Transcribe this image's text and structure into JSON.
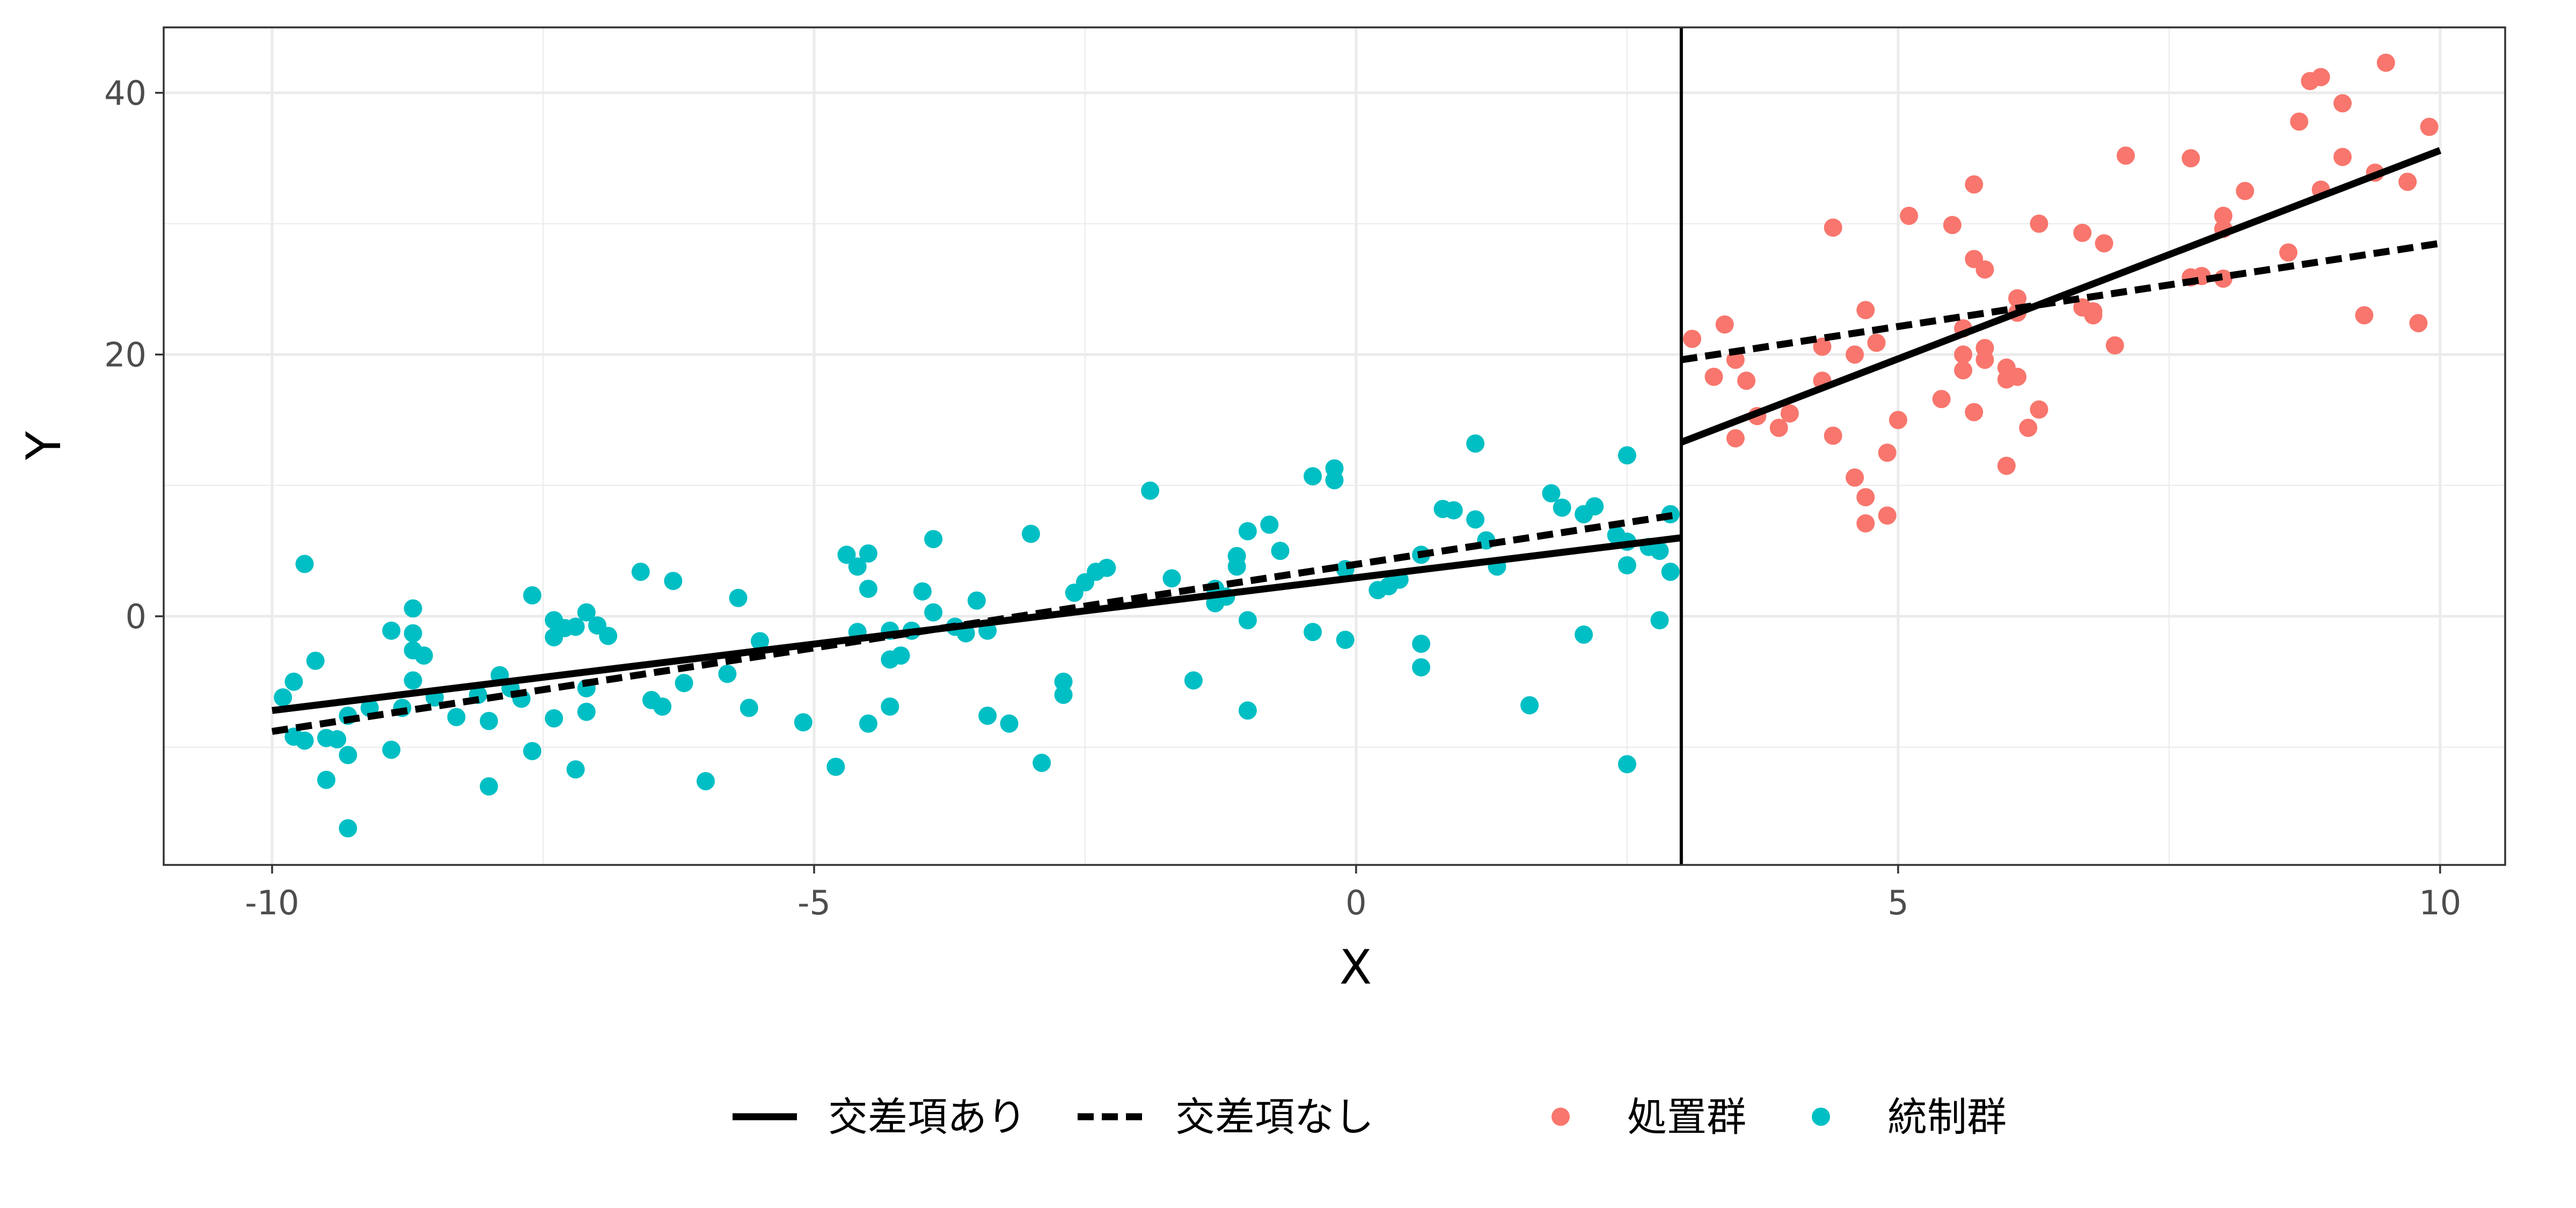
{
  "chart_data": {
    "type": "scatter",
    "xlabel": "X",
    "ylabel": "Y",
    "xlim": [
      -11,
      10.6
    ],
    "ylim": [
      -19,
      45
    ],
    "x_ticks": [
      -10,
      -5,
      0,
      5,
      10
    ],
    "y_ticks": [
      0,
      20,
      40
    ],
    "x_tick_labels": [
      "-10",
      "-5",
      "0",
      "5",
      "10"
    ],
    "y_tick_labels": [
      "0",
      "20",
      "40"
    ],
    "grid": true,
    "cutoff_x": 3,
    "legend_position": "bottom",
    "colors": {
      "treated": "#F8766D",
      "control": "#00BFC4",
      "line": "#000000"
    },
    "series": [
      {
        "name": "処置群",
        "kind": "points",
        "color": "#F8766D",
        "points": [
          [
            3.1,
            21.2
          ],
          [
            3.3,
            18.3
          ],
          [
            3.4,
            22.3
          ],
          [
            3.5,
            19.6
          ],
          [
            3.6,
            18.0
          ],
          [
            3.5,
            13.6
          ],
          [
            3.7,
            15.3
          ],
          [
            3.9,
            14.4
          ],
          [
            4.0,
            15.5
          ],
          [
            4.3,
            18.0
          ],
          [
            4.3,
            20.6
          ],
          [
            4.4,
            13.8
          ],
          [
            4.4,
            29.7
          ],
          [
            4.6,
            20.0
          ],
          [
            4.6,
            10.6
          ],
          [
            4.7,
            23.4
          ],
          [
            4.7,
            7.1
          ],
          [
            4.7,
            9.1
          ],
          [
            4.8,
            20.9
          ],
          [
            4.9,
            12.5
          ],
          [
            4.9,
            7.7
          ],
          [
            5.0,
            15.0
          ],
          [
            5.1,
            30.6
          ],
          [
            5.4,
            16.6
          ],
          [
            5.5,
            29.9
          ],
          [
            5.6,
            20.0
          ],
          [
            5.6,
            18.8
          ],
          [
            5.6,
            22.0
          ],
          [
            5.7,
            27.3
          ],
          [
            5.7,
            33.0
          ],
          [
            5.8,
            26.5
          ],
          [
            5.8,
            19.6
          ],
          [
            5.8,
            20.5
          ],
          [
            5.7,
            15.6
          ],
          [
            6.0,
            19.0
          ],
          [
            6.0,
            18.1
          ],
          [
            6.0,
            11.5
          ],
          [
            6.1,
            18.3
          ],
          [
            6.1,
            24.3
          ],
          [
            6.1,
            23.2
          ],
          [
            6.2,
            14.4
          ],
          [
            6.3,
            30.0
          ],
          [
            6.3,
            15.8
          ],
          [
            6.7,
            29.3
          ],
          [
            6.7,
            23.6
          ],
          [
            6.8,
            23.3
          ],
          [
            6.8,
            23.0
          ],
          [
            6.9,
            28.5
          ],
          [
            7.0,
            20.7
          ],
          [
            7.1,
            35.2
          ],
          [
            7.7,
            25.9
          ],
          [
            7.7,
            35.0
          ],
          [
            7.8,
            26.0
          ],
          [
            8.0,
            25.8
          ],
          [
            8.0,
            30.6
          ],
          [
            8.0,
            29.6
          ],
          [
            8.2,
            32.5
          ],
          [
            8.6,
            27.8
          ],
          [
            8.7,
            37.8
          ],
          [
            8.8,
            40.9
          ],
          [
            8.9,
            41.2
          ],
          [
            8.9,
            32.6
          ],
          [
            9.1,
            39.2
          ],
          [
            9.1,
            35.1
          ],
          [
            9.3,
            23.0
          ],
          [
            9.4,
            33.9
          ],
          [
            9.5,
            42.3
          ],
          [
            9.7,
            33.2
          ],
          [
            9.8,
            22.4
          ],
          [
            9.9,
            37.4
          ]
        ]
      },
      {
        "name": "統制群",
        "kind": "points",
        "color": "#00BFC4",
        "points": [
          [
            -9.9,
            -6.2
          ],
          [
            -9.8,
            -5.0
          ],
          [
            -9.8,
            -9.2
          ],
          [
            -9.7,
            -9.5
          ],
          [
            -9.7,
            4.0
          ],
          [
            -9.6,
            -3.4
          ],
          [
            -9.5,
            -12.5
          ],
          [
            -9.5,
            -9.3
          ],
          [
            -9.4,
            -9.4
          ],
          [
            -9.3,
            -7.6
          ],
          [
            -9.3,
            -16.2
          ],
          [
            -9.3,
            -10.6
          ],
          [
            -9.1,
            -7.0
          ],
          [
            -8.9,
            -1.1
          ],
          [
            -8.9,
            -10.2
          ],
          [
            -8.8,
            -7.0
          ],
          [
            -8.7,
            0.6
          ],
          [
            -8.7,
            -1.3
          ],
          [
            -8.7,
            -2.6
          ],
          [
            -8.7,
            -4.9
          ],
          [
            -8.6,
            -3.0
          ],
          [
            -8.5,
            -6.2
          ],
          [
            -8.3,
            -7.7
          ],
          [
            -8.1,
            -6.0
          ],
          [
            -8.0,
            -13.0
          ],
          [
            -8.0,
            -8.0
          ],
          [
            -7.9,
            -4.5
          ],
          [
            -7.8,
            -5.5
          ],
          [
            -7.7,
            -6.3
          ],
          [
            -7.6,
            -10.3
          ],
          [
            -7.6,
            1.6
          ],
          [
            -7.4,
            -7.8
          ],
          [
            -7.4,
            -1.6
          ],
          [
            -7.4,
            -0.3
          ],
          [
            -7.3,
            -0.9
          ],
          [
            -7.2,
            -11.7
          ],
          [
            -7.2,
            -0.8
          ],
          [
            -7.1,
            0.3
          ],
          [
            -7.1,
            -7.3
          ],
          [
            -7.1,
            -5.5
          ],
          [
            -7.0,
            -0.7
          ],
          [
            -6.9,
            -1.5
          ],
          [
            -6.6,
            3.4
          ],
          [
            -6.5,
            -6.4
          ],
          [
            -6.4,
            -6.9
          ],
          [
            -6.3,
            2.7
          ],
          [
            -6.2,
            -5.1
          ],
          [
            -6.0,
            -12.6
          ],
          [
            -5.8,
            -4.4
          ],
          [
            -5.7,
            1.4
          ],
          [
            -5.6,
            -7.0
          ],
          [
            -5.5,
            -1.9
          ],
          [
            -5.1,
            -8.1
          ],
          [
            -4.8,
            -11.5
          ],
          [
            -4.7,
            4.7
          ],
          [
            -4.6,
            3.8
          ],
          [
            -4.6,
            -1.2
          ],
          [
            -4.5,
            -8.2
          ],
          [
            -4.5,
            4.8
          ],
          [
            -4.5,
            2.1
          ],
          [
            -4.3,
            -1.1
          ],
          [
            -4.3,
            -6.9
          ],
          [
            -4.3,
            -3.3
          ],
          [
            -4.2,
            -3.0
          ],
          [
            -4.1,
            -1.1
          ],
          [
            -4.0,
            1.9
          ],
          [
            -3.9,
            0.3
          ],
          [
            -3.9,
            5.9
          ],
          [
            -3.7,
            -0.8
          ],
          [
            -3.6,
            -1.3
          ],
          [
            -3.5,
            1.2
          ],
          [
            -3.4,
            -7.6
          ],
          [
            -3.4,
            -1.1
          ],
          [
            -3.2,
            -8.2
          ],
          [
            -3.0,
            6.3
          ],
          [
            -2.9,
            -11.2
          ],
          [
            -2.7,
            -5.0
          ],
          [
            -2.7,
            -6.0
          ],
          [
            -2.6,
            1.8
          ],
          [
            -2.5,
            2.6
          ],
          [
            -2.4,
            3.4
          ],
          [
            -2.3,
            3.7
          ],
          [
            -1.9,
            9.6
          ],
          [
            -1.7,
            2.9
          ],
          [
            -1.5,
            -4.9
          ],
          [
            -1.3,
            1.0
          ],
          [
            -1.3,
            2.1
          ],
          [
            -1.2,
            1.5
          ],
          [
            -1.1,
            3.8
          ],
          [
            -1.1,
            4.6
          ],
          [
            -1.0,
            6.5
          ],
          [
            -1.0,
            -0.3
          ],
          [
            -1.0,
            -7.2
          ],
          [
            -0.8,
            7.0
          ],
          [
            -0.7,
            5.0
          ],
          [
            -0.4,
            10.7
          ],
          [
            -0.4,
            -1.2
          ],
          [
            -0.2,
            11.3
          ],
          [
            -0.2,
            10.4
          ],
          [
            -0.1,
            3.6
          ],
          [
            -0.1,
            -1.8
          ],
          [
            0.2,
            2.0
          ],
          [
            0.3,
            2.3
          ],
          [
            0.4,
            2.8
          ],
          [
            0.6,
            -2.1
          ],
          [
            0.6,
            -3.9
          ],
          [
            0.6,
            4.7
          ],
          [
            0.8,
            8.2
          ],
          [
            0.9,
            8.1
          ],
          [
            1.1,
            7.4
          ],
          [
            1.1,
            13.2
          ],
          [
            1.2,
            5.8
          ],
          [
            1.3,
            3.8
          ],
          [
            1.6,
            -6.8
          ],
          [
            1.8,
            9.4
          ],
          [
            1.9,
            8.3
          ],
          [
            2.1,
            7.8
          ],
          [
            2.2,
            8.4
          ],
          [
            2.1,
            -1.4
          ],
          [
            2.4,
            6.2
          ],
          [
            2.5,
            5.7
          ],
          [
            2.5,
            12.3
          ],
          [
            2.5,
            3.9
          ],
          [
            2.5,
            -11.3
          ],
          [
            2.7,
            5.3
          ],
          [
            2.8,
            5.0
          ],
          [
            2.8,
            -0.3
          ],
          [
            2.9,
            7.8
          ],
          [
            2.9,
            3.4
          ]
        ]
      },
      {
        "name": "交差項あり",
        "kind": "line",
        "style": "solid",
        "segments": [
          [
            [
              -10,
              -7.2
            ],
            [
              3,
              6.0
            ]
          ],
          [
            [
              3,
              13.3
            ],
            [
              10,
              35.6
            ]
          ]
        ]
      },
      {
        "name": "交差項なし",
        "kind": "line",
        "style": "dashed",
        "segments": [
          [
            [
              -10,
              -8.8
            ],
            [
              3,
              7.8
            ]
          ],
          [
            [
              3,
              19.6
            ],
            [
              10,
              28.5
            ]
          ]
        ]
      }
    ],
    "legend": {
      "line_entries": [
        "交差項あり",
        "交差項なし"
      ],
      "point_entries": [
        "処置群",
        "統制群"
      ]
    }
  }
}
